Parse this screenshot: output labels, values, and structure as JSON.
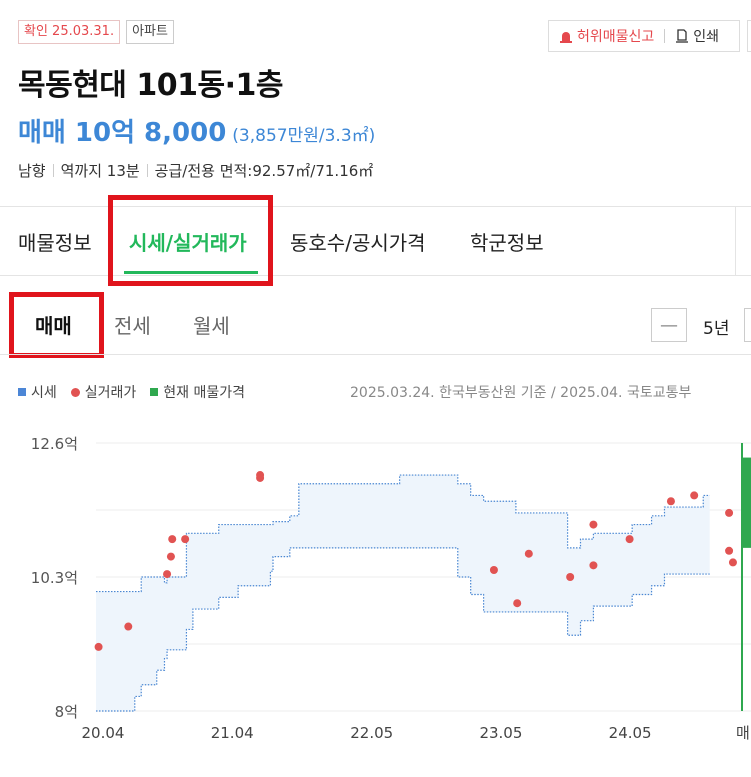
{
  "badges": {
    "confirm": "확인 25.03.31.",
    "type": "아파트"
  },
  "actions": {
    "report": "허위매물신고",
    "print": "인쇄"
  },
  "listing": {
    "title": "목동현대 101동·1층",
    "price_main": "매매 10억 8,000",
    "price_sub": "(3,857만원/3.3㎡)",
    "specs": [
      "남향",
      "역까지 13분",
      "공급/전용 면적:92.57㎡/71.16㎡"
    ]
  },
  "tabs": [
    "매물정보",
    "시세/실거래가",
    "동호수/공시가격",
    "학군정보"
  ],
  "active_tab": "시세/실거래가",
  "subtabs": [
    "매매",
    "전세",
    "월세"
  ],
  "active_subtab": "매매",
  "period": {
    "minus": "—",
    "label": "5년"
  },
  "legend": {
    "market": "시세",
    "deal": "실거래가",
    "current": "현재 매물가격"
  },
  "source_note": "2025.03.24. 한국부동산원 기준 / 2025.04. 국토교통부",
  "colors": {
    "accent_green": "#22b85b",
    "price_blue": "#3d87d6",
    "deal_red": "#e15352",
    "band_fill": "#eef5fc",
    "band_line": "#4a87d2",
    "current_green": "#2fa84f"
  },
  "chart_data": {
    "type": "area",
    "y_ticks": [
      "12.6억",
      "10.3억",
      "8억"
    ],
    "ylim": [
      8,
      12.6
    ],
    "x_ticks": [
      "20.04",
      "21.04",
      "22.05",
      "23.05",
      "24.05"
    ],
    "x_tick_values": [
      2020.25,
      2021.25,
      2022.33,
      2023.33,
      2024.33
    ],
    "xlim": [
      2020.25,
      2025.25
    ],
    "x_edge_label": "매",
    "band": {
      "x": [
        2020.25,
        2020.55,
        2020.6,
        2020.72,
        2020.78,
        2020.8,
        2020.95,
        2021.0,
        2021.2,
        2021.35,
        2021.6,
        2021.62,
        2021.75,
        2021.82,
        2021.9,
        2022.0,
        2022.2,
        2022.5,
        2022.6,
        2022.8,
        2023.0,
        2023.05,
        2023.15,
        2023.25,
        2023.5,
        2023.7,
        2023.82,
        2023.9,
        2024.0,
        2024.1,
        2024.4,
        2024.55,
        2024.65,
        2024.95,
        2025.0
      ],
      "upper": [
        10.05,
        10.05,
        10.3,
        10.3,
        10.2,
        10.3,
        11.05,
        11.05,
        11.2,
        11.2,
        11.2,
        11.25,
        11.35,
        11.9,
        11.9,
        11.9,
        11.9,
        11.9,
        12.05,
        12.05,
        12.05,
        11.9,
        11.7,
        11.6,
        11.4,
        11.4,
        11.4,
        10.8,
        10.95,
        11.05,
        11.2,
        11.35,
        11.5,
        11.7,
        11.7
      ],
      "lower": [
        8.0,
        8.25,
        8.45,
        8.7,
        8.9,
        9.05,
        9.4,
        9.75,
        9.95,
        10.15,
        10.4,
        10.65,
        10.8,
        10.8,
        10.8,
        10.8,
        10.8,
        10.8,
        10.8,
        10.8,
        10.8,
        10.3,
        10.0,
        9.7,
        9.7,
        9.7,
        9.7,
        9.3,
        9.55,
        9.8,
        10.0,
        10.15,
        10.35,
        10.35,
        10.35
      ]
    },
    "deals": [
      {
        "x": 2020.27,
        "y": 9.1
      },
      {
        "x": 2020.5,
        "y": 9.45
      },
      {
        "x": 2020.8,
        "y": 10.35
      },
      {
        "x": 2020.83,
        "y": 10.65
      },
      {
        "x": 2020.84,
        "y": 10.95
      },
      {
        "x": 2020.94,
        "y": 10.95
      },
      {
        "x": 2021.52,
        "y": 12.0
      },
      {
        "x": 2021.52,
        "y": 12.05
      },
      {
        "x": 2023.33,
        "y": 10.42
      },
      {
        "x": 2023.51,
        "y": 9.85
      },
      {
        "x": 2023.6,
        "y": 10.7
      },
      {
        "x": 2023.92,
        "y": 10.3
      },
      {
        "x": 2024.1,
        "y": 10.5
      },
      {
        "x": 2024.1,
        "y": 11.2
      },
      {
        "x": 2024.38,
        "y": 10.95
      },
      {
        "x": 2024.7,
        "y": 11.6
      },
      {
        "x": 2024.88,
        "y": 11.7
      },
      {
        "x": 2025.15,
        "y": 11.4
      },
      {
        "x": 2025.15,
        "y": 10.75
      },
      {
        "x": 2025.18,
        "y": 10.55
      }
    ],
    "current_listing_range": [
      8.0,
      12.6
    ],
    "current_listing_box": [
      10.8,
      12.35
    ]
  }
}
